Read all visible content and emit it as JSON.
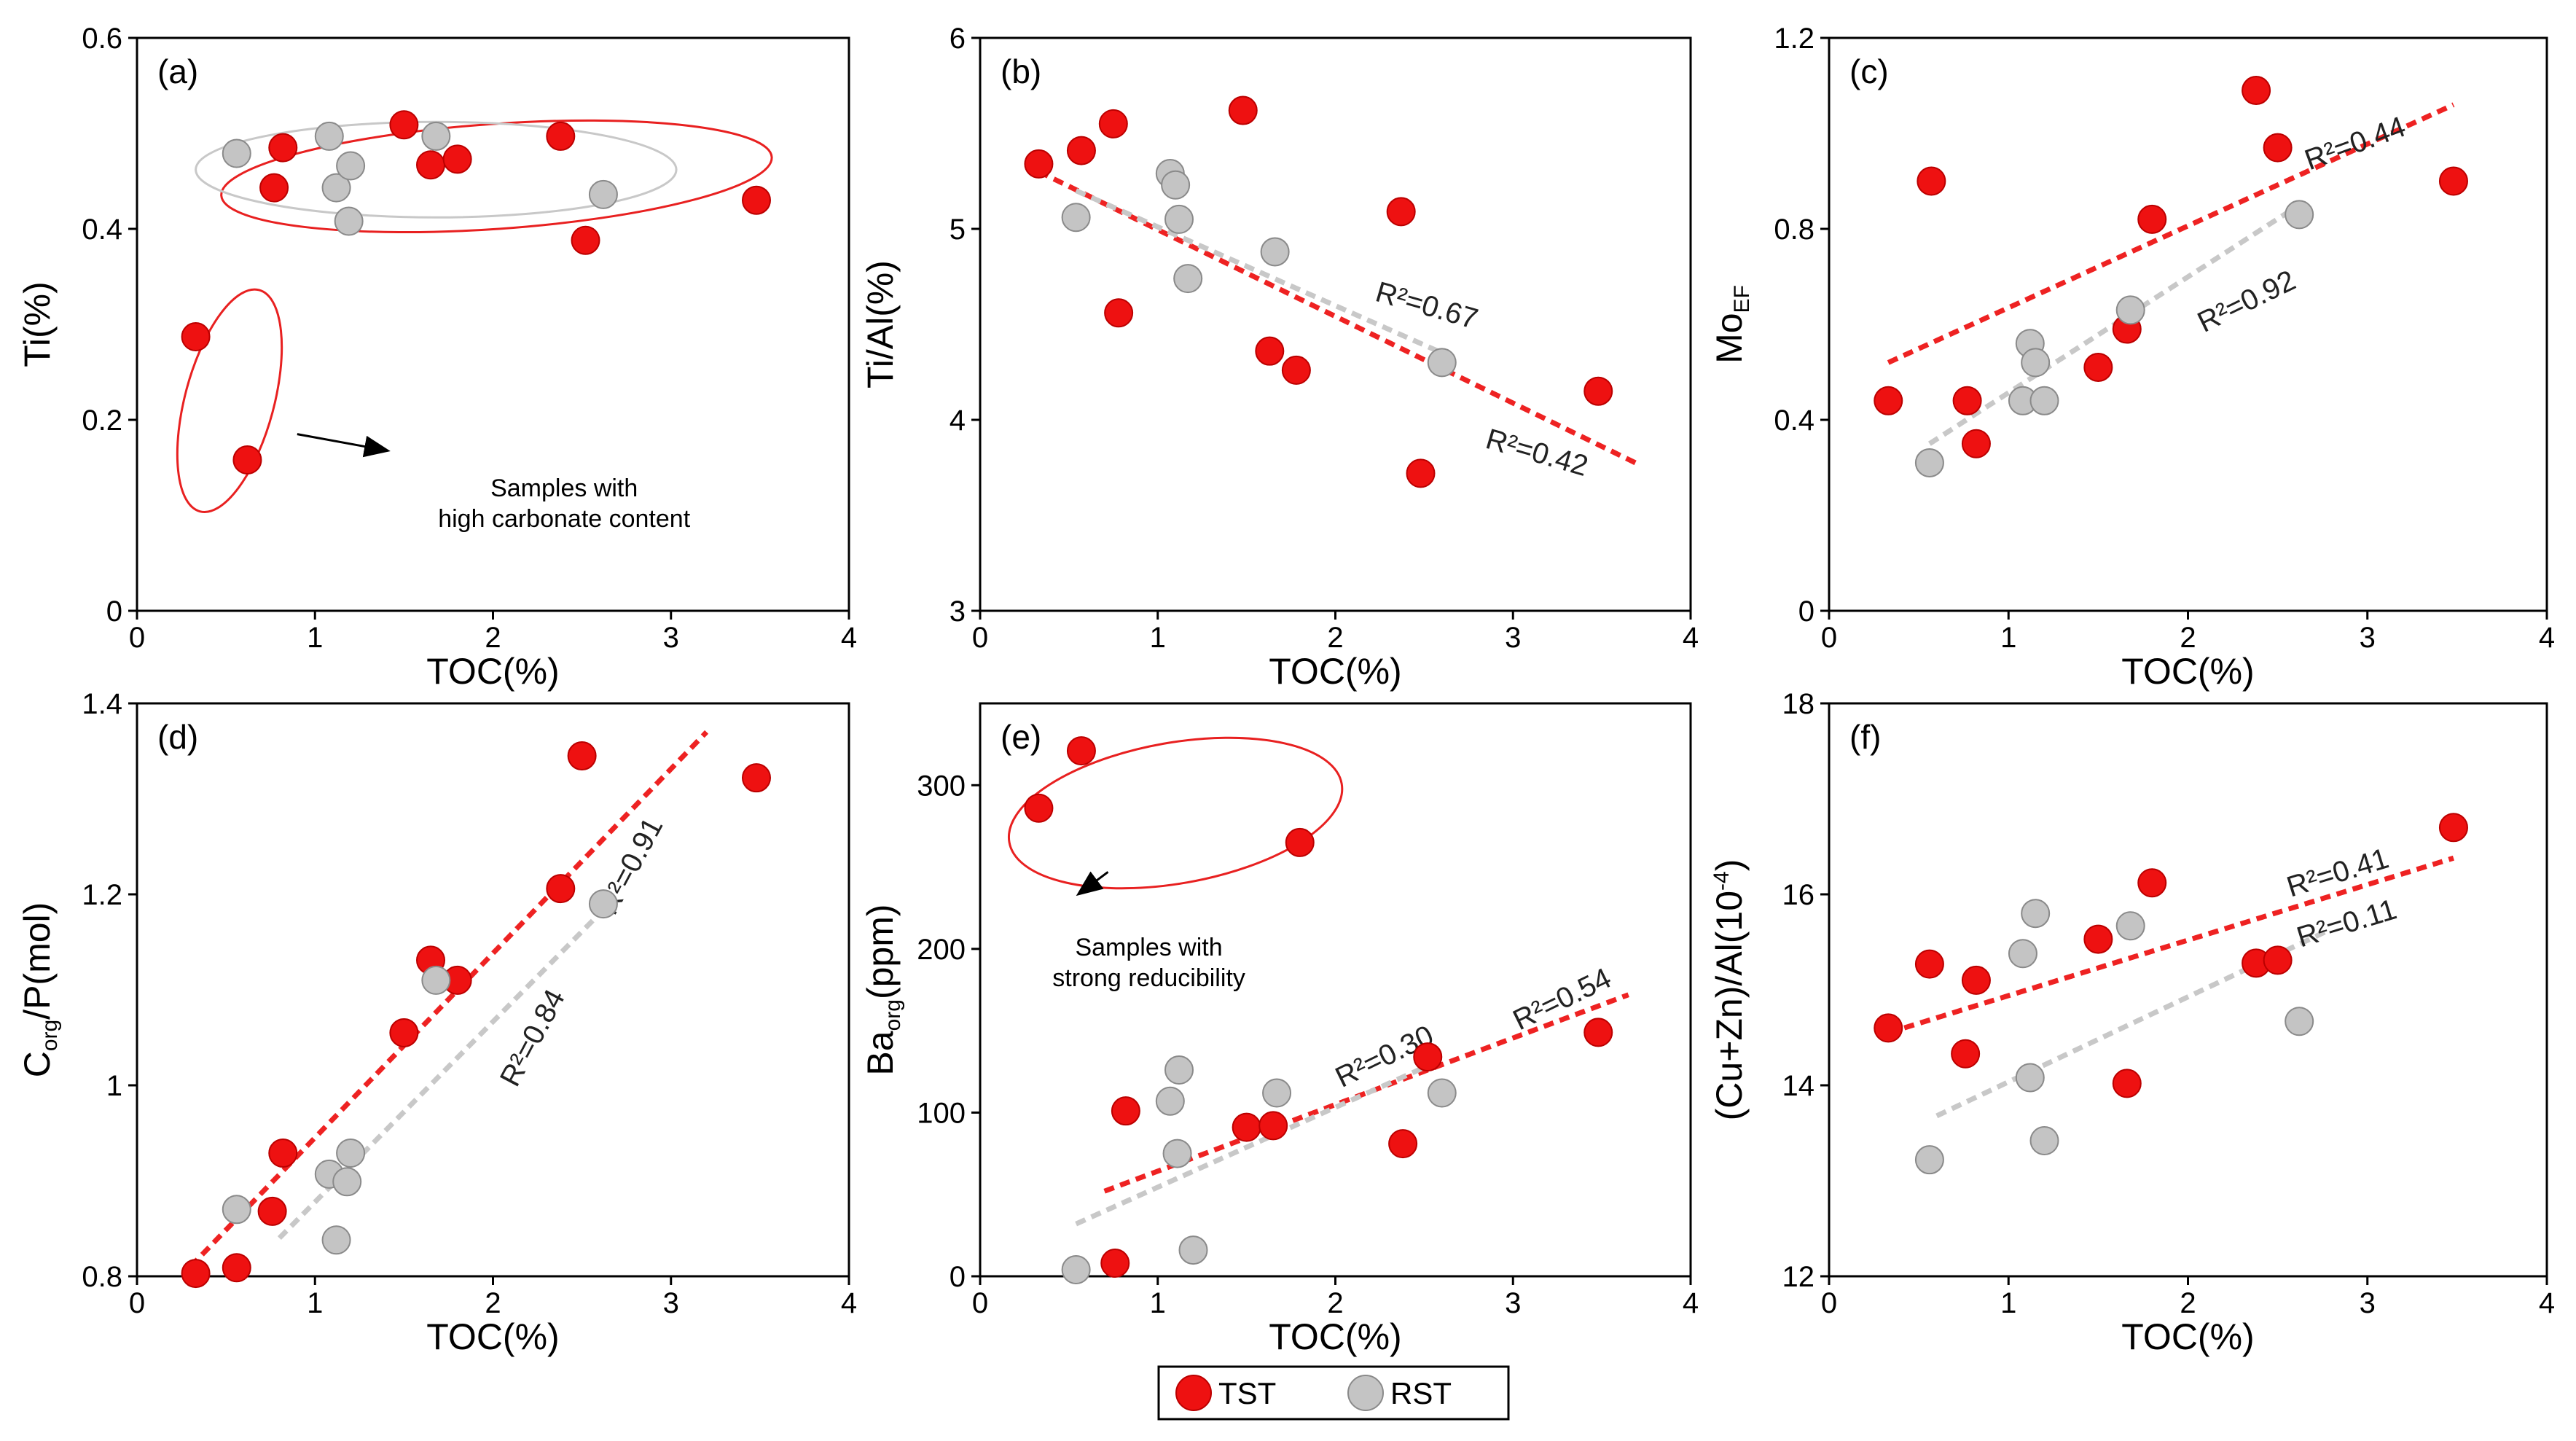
{
  "colors": {
    "tst": "#ee1111",
    "rst": "#c4c4c4",
    "tst_stroke": "#bb0000",
    "rst_stroke": "#8a8a8a",
    "tst_line": "#ee2222",
    "rst_line": "#c8c8c8",
    "ellipse_red": "#e82020",
    "ellipse_gray": "#c8c8c8"
  },
  "legend": {
    "tst_label": "TST",
    "rst_label": "RST"
  },
  "chart_data": [
    {
      "id": "a",
      "type": "scatter",
      "panel_label": "(a)",
      "xlabel": "TOC(%)",
      "ylabel": "Ti(%)",
      "xlim": [
        0,
        4
      ],
      "ylim": [
        0,
        0.6
      ],
      "xticks": [
        0,
        1,
        2,
        3,
        4
      ],
      "yticks": [
        0,
        0.2,
        0.4,
        0.6
      ],
      "xtick_labels": [
        "0",
        "1",
        "2",
        "3",
        "4"
      ],
      "ytick_labels": [
        "0",
        "0.2",
        "0.4",
        "0.6"
      ],
      "series": [
        {
          "name": "TST",
          "points": [
            [
              0.33,
              0.287
            ],
            [
              0.62,
              0.158
            ],
            [
              0.77,
              0.443
            ],
            [
              0.82,
              0.485
            ],
            [
              1.5,
              0.509
            ],
            [
              1.65,
              0.467
            ],
            [
              1.8,
              0.473
            ],
            [
              2.38,
              0.497
            ],
            [
              2.52,
              0.388
            ],
            [
              3.48,
              0.43
            ]
          ]
        },
        {
          "name": "RST",
          "points": [
            [
              0.56,
              0.479
            ],
            [
              1.08,
              0.497
            ],
            [
              1.12,
              0.443
            ],
            [
              1.19,
              0.408
            ],
            [
              1.2,
              0.466
            ],
            [
              1.68,
              0.497
            ],
            [
              2.62,
              0.436
            ]
          ]
        }
      ],
      "ellipses": [
        {
          "color": "red",
          "cx": 2.02,
          "cy": 0.455,
          "rx": 1.55,
          "ry": 0.055,
          "angle_deg": 4
        },
        {
          "color": "gray",
          "cx": 1.68,
          "cy": 0.462,
          "rx": 1.35,
          "ry": 0.05,
          "angle_deg": 0
        },
        {
          "color": "red",
          "cx": 0.52,
          "cy": 0.22,
          "rx": 0.25,
          "ry": 0.12,
          "angle_deg": -15
        }
      ],
      "annotations": [
        {
          "lines": [
            "Samples with",
            "high carbonate content"
          ],
          "x": 2.4,
          "y": 0.12,
          "arrow_from": [
            0.9,
            0.185
          ],
          "arrow_to": [
            1.4,
            0.168
          ]
        }
      ],
      "fits": []
    },
    {
      "id": "b",
      "type": "scatter",
      "panel_label": "(b)",
      "xlabel": "TOC(%)",
      "ylabel": "Ti/Al(%)",
      "xlim": [
        0,
        4
      ],
      "ylim": [
        3,
        6
      ],
      "xticks": [
        0,
        1,
        2,
        3,
        4
      ],
      "yticks": [
        3,
        4,
        5,
        6
      ],
      "xtick_labels": [
        "0",
        "1",
        "2",
        "3",
        "4"
      ],
      "ytick_labels": [
        "3",
        "4",
        "5",
        "6"
      ],
      "series": [
        {
          "name": "TST",
          "points": [
            [
              0.33,
              5.34
            ],
            [
              0.57,
              5.41
            ],
            [
              0.75,
              5.55
            ],
            [
              0.78,
              4.56
            ],
            [
              1.48,
              5.62
            ],
            [
              1.63,
              4.36
            ],
            [
              1.78,
              4.26
            ],
            [
              2.37,
              5.09
            ],
            [
              2.48,
              3.72
            ],
            [
              3.48,
              4.15
            ]
          ]
        },
        {
          "name": "RST",
          "points": [
            [
              0.54,
              5.06
            ],
            [
              1.07,
              5.29
            ],
            [
              1.1,
              5.23
            ],
            [
              1.12,
              5.05
            ],
            [
              1.17,
              4.74
            ],
            [
              1.66,
              4.88
            ],
            [
              2.6,
              4.3
            ]
          ]
        }
      ],
      "fits": [
        {
          "series": "TST",
          "r2_label": "R²=0.42",
          "from": [
            0.33,
            5.3
          ],
          "to": [
            3.7,
            3.77
          ],
          "label_at": [
            3.12,
            3.78
          ],
          "label_angle": 16
        },
        {
          "series": "RST",
          "r2_label": "R²=0.67",
          "from": [
            0.54,
            5.2
          ],
          "to": [
            2.65,
            4.33
          ],
          "label_at": [
            2.5,
            4.55
          ],
          "label_angle": 16
        }
      ]
    },
    {
      "id": "c",
      "type": "scatter",
      "panel_label": "(c)",
      "xlabel": "TOC(%)",
      "ylabel_main": "Mo",
      "ylabel_sub": "EF",
      "xlim": [
        0,
        4
      ],
      "ylim": [
        0,
        1.2
      ],
      "xticks": [
        0,
        1,
        2,
        3,
        4
      ],
      "yticks": [
        0,
        0.4,
        0.8,
        1.2
      ],
      "xtick_labels": [
        "0",
        "1",
        "2",
        "3",
        "4"
      ],
      "ytick_labels": [
        "0",
        "0.4",
        "0.8",
        "1.2"
      ],
      "series": [
        {
          "name": "TST",
          "points": [
            [
              0.33,
              0.44
            ],
            [
              0.57,
              0.9
            ],
            [
              0.77,
              0.44
            ],
            [
              0.82,
              0.35
            ],
            [
              1.5,
              0.51
            ],
            [
              1.66,
              0.59
            ],
            [
              1.8,
              0.82
            ],
            [
              2.38,
              1.09
            ],
            [
              2.5,
              0.97
            ],
            [
              3.48,
              0.9
            ]
          ]
        },
        {
          "name": "RST",
          "points": [
            [
              0.56,
              0.31
            ],
            [
              1.08,
              0.44
            ],
            [
              1.12,
              0.56
            ],
            [
              1.15,
              0.52
            ],
            [
              1.2,
              0.44
            ],
            [
              1.68,
              0.63
            ],
            [
              2.62,
              0.83
            ]
          ]
        }
      ],
      "fits": [
        {
          "series": "TST",
          "r2_label": "R²=0.44",
          "from": [
            0.33,
            0.52
          ],
          "to": [
            3.48,
            1.06
          ],
          "label_at": [
            2.95,
            0.96
          ],
          "label_angle": -20
        },
        {
          "series": "RST",
          "r2_label": "R²=0.92",
          "from": [
            0.56,
            0.35
          ],
          "to": [
            2.62,
            0.85
          ],
          "label_at": [
            2.35,
            0.63
          ],
          "label_angle": -26
        }
      ]
    },
    {
      "id": "d",
      "type": "scatter",
      "panel_label": "(d)",
      "xlabel": "TOC(%)",
      "ylabel_main": "C",
      "ylabel_sub": "org",
      "ylabel_rest": "/P(mol)",
      "xlim": [
        0,
        4
      ],
      "ylim": [
        0.8,
        1.4
      ],
      "xticks": [
        0,
        1,
        2,
        3,
        4
      ],
      "yticks": [
        0.8,
        1.0,
        1.2,
        1.4
      ],
      "xtick_labels": [
        "0",
        "1",
        "2",
        "3",
        "4"
      ],
      "ytick_labels": [
        "0.8",
        "1",
        "1.2",
        "1.4"
      ],
      "series": [
        {
          "name": "TST",
          "points": [
            [
              0.33,
              0.803
            ],
            [
              0.56,
              0.809
            ],
            [
              0.76,
              0.868
            ],
            [
              0.82,
              0.929
            ],
            [
              1.5,
              1.055
            ],
            [
              1.65,
              1.131
            ],
            [
              1.8,
              1.11
            ],
            [
              2.38,
              1.206
            ],
            [
              2.5,
              1.345
            ],
            [
              3.48,
              1.322
            ]
          ]
        },
        {
          "name": "RST",
          "points": [
            [
              0.56,
              0.87
            ],
            [
              1.08,
              0.907
            ],
            [
              1.12,
              0.838
            ],
            [
              1.18,
              0.899
            ],
            [
              1.2,
              0.929
            ],
            [
              1.68,
              1.11
            ],
            [
              2.62,
              1.19
            ]
          ]
        }
      ],
      "fits": [
        {
          "series": "TST",
          "r2_label": "R²=0.91",
          "from": [
            0.3,
            0.81
          ],
          "to": [
            3.2,
            1.37
          ],
          "label_at": [
            2.82,
            1.225
          ],
          "label_angle": -62
        },
        {
          "series": "RST",
          "r2_label": "R²=0.84",
          "from": [
            0.8,
            0.84
          ],
          "to": [
            2.6,
            1.18
          ],
          "label_at": [
            2.27,
            1.045
          ],
          "label_angle": -62
        }
      ]
    },
    {
      "id": "e",
      "type": "scatter",
      "panel_label": "(e)",
      "xlabel": "TOC(%)",
      "ylabel_main": "Ba",
      "ylabel_sub": "org",
      "ylabel_rest": "(ppm)",
      "xlim": [
        0,
        4
      ],
      "ylim": [
        0,
        350
      ],
      "xticks": [
        0,
        1,
        2,
        3,
        4
      ],
      "yticks": [
        0,
        100,
        200,
        300
      ],
      "xtick_labels": [
        "0",
        "1",
        "2",
        "3",
        "4"
      ],
      "ytick_labels": [
        "0",
        "100",
        "200",
        "300"
      ],
      "series": [
        {
          "name": "TST",
          "points": [
            [
              0.33,
              286
            ],
            [
              0.57,
              321
            ],
            [
              0.76,
              8
            ],
            [
              0.82,
              101
            ],
            [
              1.5,
              91
            ],
            [
              1.65,
              92
            ],
            [
              1.8,
              265
            ],
            [
              2.38,
              81
            ],
            [
              2.52,
              134
            ],
            [
              3.48,
              149
            ]
          ]
        },
        {
          "name": "RST",
          "points": [
            [
              0.54,
              4
            ],
            [
              1.07,
              107
            ],
            [
              1.11,
              75
            ],
            [
              1.12,
              126
            ],
            [
              1.2,
              16
            ],
            [
              1.67,
              112
            ],
            [
              2.6,
              112
            ]
          ]
        }
      ],
      "ellipses": [
        {
          "color": "red",
          "cx": 1.1,
          "cy": 283,
          "rx": 0.95,
          "ry": 43,
          "angle_deg": 10
        }
      ],
      "annotations": [
        {
          "lines": [
            "Samples with",
            "strong reducibility"
          ],
          "x": 0.95,
          "y": 196,
          "arrow_from": [
            0.72,
            247
          ],
          "arrow_to": [
            0.56,
            234
          ]
        }
      ],
      "fits": [
        {
          "series": "TST",
          "r2_label": "R²=0.54",
          "from": [
            0.7,
            52
          ],
          "to": [
            3.65,
            172
          ],
          "label_at": [
            3.3,
            164
          ],
          "label_angle": -26
        },
        {
          "series": "RST",
          "r2_label": "R²=0.30",
          "from": [
            0.54,
            32
          ],
          "to": [
            2.55,
            130
          ],
          "label_at": [
            2.3,
            129
          ],
          "label_angle": -26
        }
      ]
    },
    {
      "id": "f",
      "type": "scatter",
      "panel_label": "(f)",
      "xlabel": "TOC(%)",
      "ylabel_main": "(Cu+Zn)/Al(10",
      "ylabel_sup": "-4",
      "ylabel_rest": ")",
      "xlim": [
        0,
        4
      ],
      "ylim": [
        12,
        18
      ],
      "xticks": [
        0,
        1,
        2,
        3,
        4
      ],
      "yticks": [
        12,
        14,
        16,
        18
      ],
      "xtick_labels": [
        "0",
        "1",
        "2",
        "3",
        "4"
      ],
      "ytick_labels": [
        "12",
        "14",
        "16",
        "18"
      ],
      "series": [
        {
          "name": "TST",
          "points": [
            [
              0.33,
              14.6
            ],
            [
              0.56,
              15.27
            ],
            [
              0.76,
              14.33
            ],
            [
              0.82,
              15.1
            ],
            [
              1.5,
              15.53
            ],
            [
              1.66,
              14.02
            ],
            [
              1.8,
              16.12
            ],
            [
              2.38,
              15.28
            ],
            [
              2.5,
              15.31
            ],
            [
              3.48,
              16.7
            ]
          ]
        },
        {
          "name": "RST",
          "points": [
            [
              0.56,
              13.22
            ],
            [
              1.08,
              15.38
            ],
            [
              1.12,
              14.08
            ],
            [
              1.15,
              15.8
            ],
            [
              1.2,
              13.42
            ],
            [
              1.68,
              15.67
            ],
            [
              2.62,
              14.67
            ]
          ]
        }
      ],
      "fits": [
        {
          "series": "TST",
          "r2_label": "R²=0.41",
          "from": [
            0.33,
            14.55
          ],
          "to": [
            3.48,
            16.38
          ],
          "label_at": [
            2.85,
            16.13
          ],
          "label_angle": -17
        },
        {
          "series": "RST",
          "r2_label": "R²=0.11",
          "from": [
            0.6,
            13.68
          ],
          "to": [
            2.78,
            15.62
          ],
          "label_at": [
            2.9,
            15.6
          ],
          "label_angle": -17
        }
      ]
    }
  ]
}
